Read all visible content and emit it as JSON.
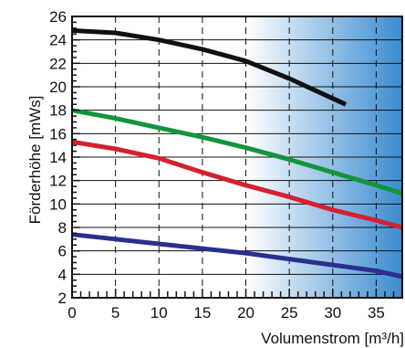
{
  "chart_data": {
    "type": "line",
    "title": "",
    "xlabel": "Volumenstrom [m³/h]",
    "ylabel": "Förderhöhe [mWs]",
    "xlim": [
      0,
      38
    ],
    "ylim": [
      2,
      26
    ],
    "x_ticks": [
      0,
      5,
      10,
      15,
      20,
      25,
      30,
      35
    ],
    "y_ticks": [
      2,
      4,
      6,
      8,
      10,
      12,
      14,
      16,
      18,
      20,
      22,
      24,
      26
    ],
    "grid": {
      "x": "dashed",
      "y": "solid"
    },
    "shaded_region": {
      "x_from": 20,
      "x_to": 38,
      "color_start": "#ffffff",
      "color_end": "#3a8bd0"
    },
    "series": [
      {
        "color": "#111111",
        "x": [
          0,
          5,
          10,
          15,
          20,
          25,
          30,
          31.5
        ],
        "y": [
          24.8,
          24.6,
          24.0,
          23.2,
          22.2,
          20.7,
          19.0,
          18.5
        ]
      },
      {
        "color": "#12953c",
        "x": [
          0,
          5,
          10,
          15,
          20,
          25,
          30,
          35,
          38
        ],
        "y": [
          18.0,
          17.3,
          16.5,
          15.7,
          14.8,
          13.8,
          12.7,
          11.6,
          10.9
        ]
      },
      {
        "color": "#d42030",
        "x": [
          0,
          5,
          10,
          15,
          20,
          25,
          30,
          35,
          38
        ],
        "y": [
          15.3,
          14.7,
          13.9,
          12.7,
          11.6,
          10.6,
          9.5,
          8.6,
          8.0
        ]
      },
      {
        "color": "#2a2f8f",
        "x": [
          0,
          5,
          10,
          15,
          20,
          25,
          30,
          35,
          38
        ],
        "y": [
          7.4,
          7.0,
          6.6,
          6.2,
          5.8,
          5.3,
          4.8,
          4.3,
          3.8
        ]
      }
    ]
  }
}
